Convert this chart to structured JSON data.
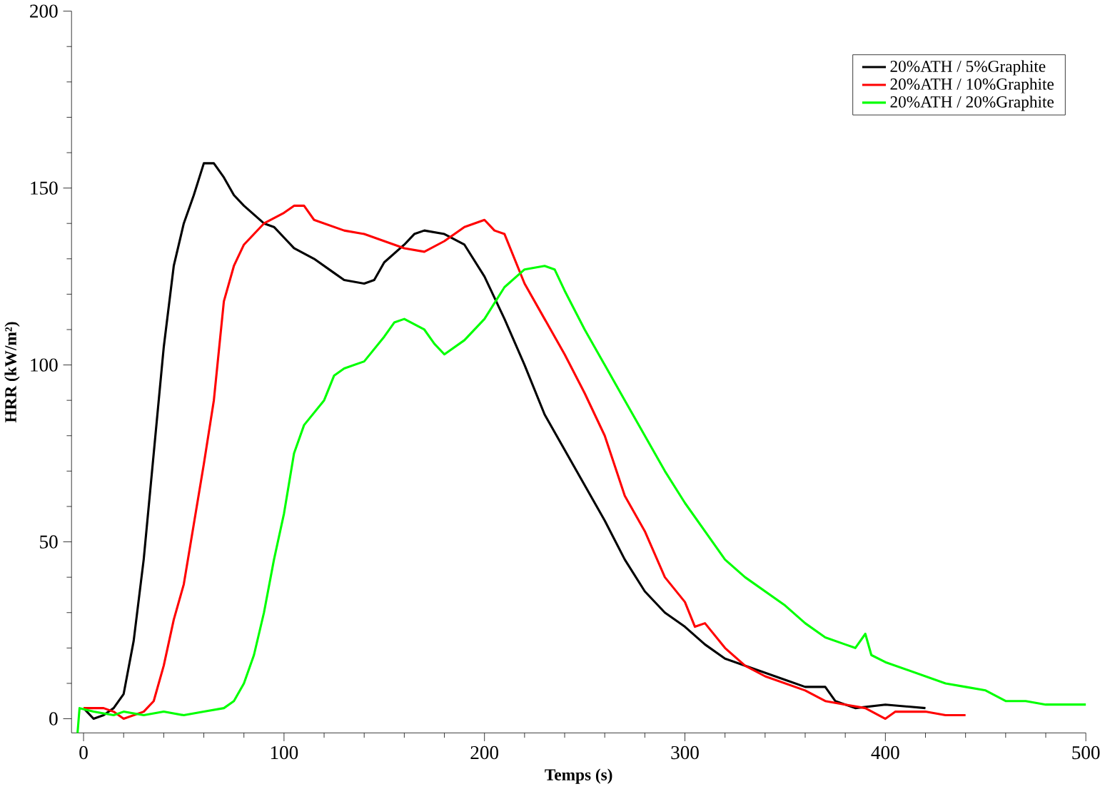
{
  "chart_data": {
    "type": "line",
    "xlabel": "Temps (s)",
    "ylabel": "HRR (kW/m²)",
    "xlim": [
      -6,
      500
    ],
    "ylim": [
      -4,
      200
    ],
    "xticks": [
      0,
      100,
      200,
      300,
      400,
      500
    ],
    "yticks": [
      0,
      50,
      100,
      150,
      200
    ],
    "legend": "top right",
    "grid": false,
    "marker": "none",
    "line_style": "solid",
    "series": [
      {
        "name": "20%ATH / 5%Graphite",
        "color": "#000000",
        "x": [
          0,
          5,
          10,
          15,
          20,
          25,
          30,
          35,
          40,
          45,
          50,
          55,
          60,
          65,
          70,
          75,
          80,
          90,
          95,
          100,
          105,
          115,
          125,
          130,
          140,
          145,
          150,
          160,
          165,
          170,
          180,
          190,
          200,
          210,
          220,
          230,
          240,
          250,
          260,
          270,
          280,
          290,
          300,
          310,
          320,
          330,
          340,
          350,
          360,
          370,
          375,
          385,
          400,
          420
        ],
        "values": [
          3,
          0,
          1,
          3,
          7,
          22,
          45,
          75,
          105,
          128,
          140,
          148,
          157,
          157,
          153,
          148,
          145,
          140,
          139,
          136,
          133,
          130,
          126,
          124,
          123,
          124,
          129,
          134,
          137,
          138,
          137,
          134,
          125,
          113,
          100,
          86,
          76,
          66,
          56,
          45,
          36,
          30,
          26,
          21,
          17,
          15,
          13,
          11,
          9,
          9,
          5,
          3,
          4,
          3
        ]
      },
      {
        "name": "20%ATH / 10%Graphite",
        "color": "#ff0000",
        "x": [
          0,
          10,
          15,
          20,
          30,
          35,
          40,
          45,
          50,
          55,
          60,
          65,
          70,
          75,
          80,
          90,
          100,
          105,
          110,
          115,
          130,
          140,
          150,
          160,
          170,
          180,
          190,
          200,
          205,
          210,
          220,
          230,
          240,
          250,
          260,
          270,
          280,
          290,
          300,
          305,
          310,
          320,
          330,
          340,
          350,
          360,
          370,
          380,
          390,
          400,
          405,
          420,
          430,
          440
        ],
        "values": [
          3,
          3,
          2,
          0,
          2,
          5,
          15,
          28,
          38,
          55,
          72,
          90,
          118,
          128,
          134,
          140,
          143,
          145,
          145,
          141,
          138,
          137,
          135,
          133,
          132,
          135,
          139,
          141,
          138,
          137,
          123,
          113,
          103,
          92,
          80,
          63,
          53,
          40,
          33,
          26,
          27,
          20,
          15,
          12,
          10,
          8,
          5,
          4,
          3,
          0,
          2,
          2,
          1,
          1
        ]
      },
      {
        "name": "20%ATH / 20%Graphite",
        "color": "#00ff00",
        "x": [
          -3,
          -2,
          5,
          15,
          20,
          30,
          40,
          50,
          60,
          70,
          75,
          80,
          85,
          90,
          95,
          100,
          105,
          110,
          120,
          125,
          130,
          140,
          150,
          155,
          160,
          170,
          175,
          180,
          190,
          200,
          210,
          220,
          230,
          235,
          240,
          250,
          260,
          270,
          280,
          290,
          300,
          310,
          320,
          330,
          340,
          350,
          360,
          370,
          380,
          385,
          390,
          393,
          400,
          410,
          420,
          430,
          440,
          450,
          460,
          470,
          480,
          500
        ],
        "values": [
          -4,
          3,
          2,
          1,
          2,
          1,
          2,
          1,
          2,
          3,
          5,
          10,
          18,
          30,
          45,
          58,
          75,
          83,
          90,
          97,
          99,
          101,
          108,
          112,
          113,
          110,
          106,
          103,
          107,
          113,
          122,
          127,
          128,
          127,
          121,
          110,
          100,
          90,
          80,
          70,
          61,
          53,
          45,
          40,
          36,
          32,
          27,
          23,
          21,
          20,
          24,
          18,
          16,
          14,
          12,
          10,
          9,
          8,
          5,
          5,
          4,
          4
        ]
      }
    ]
  }
}
